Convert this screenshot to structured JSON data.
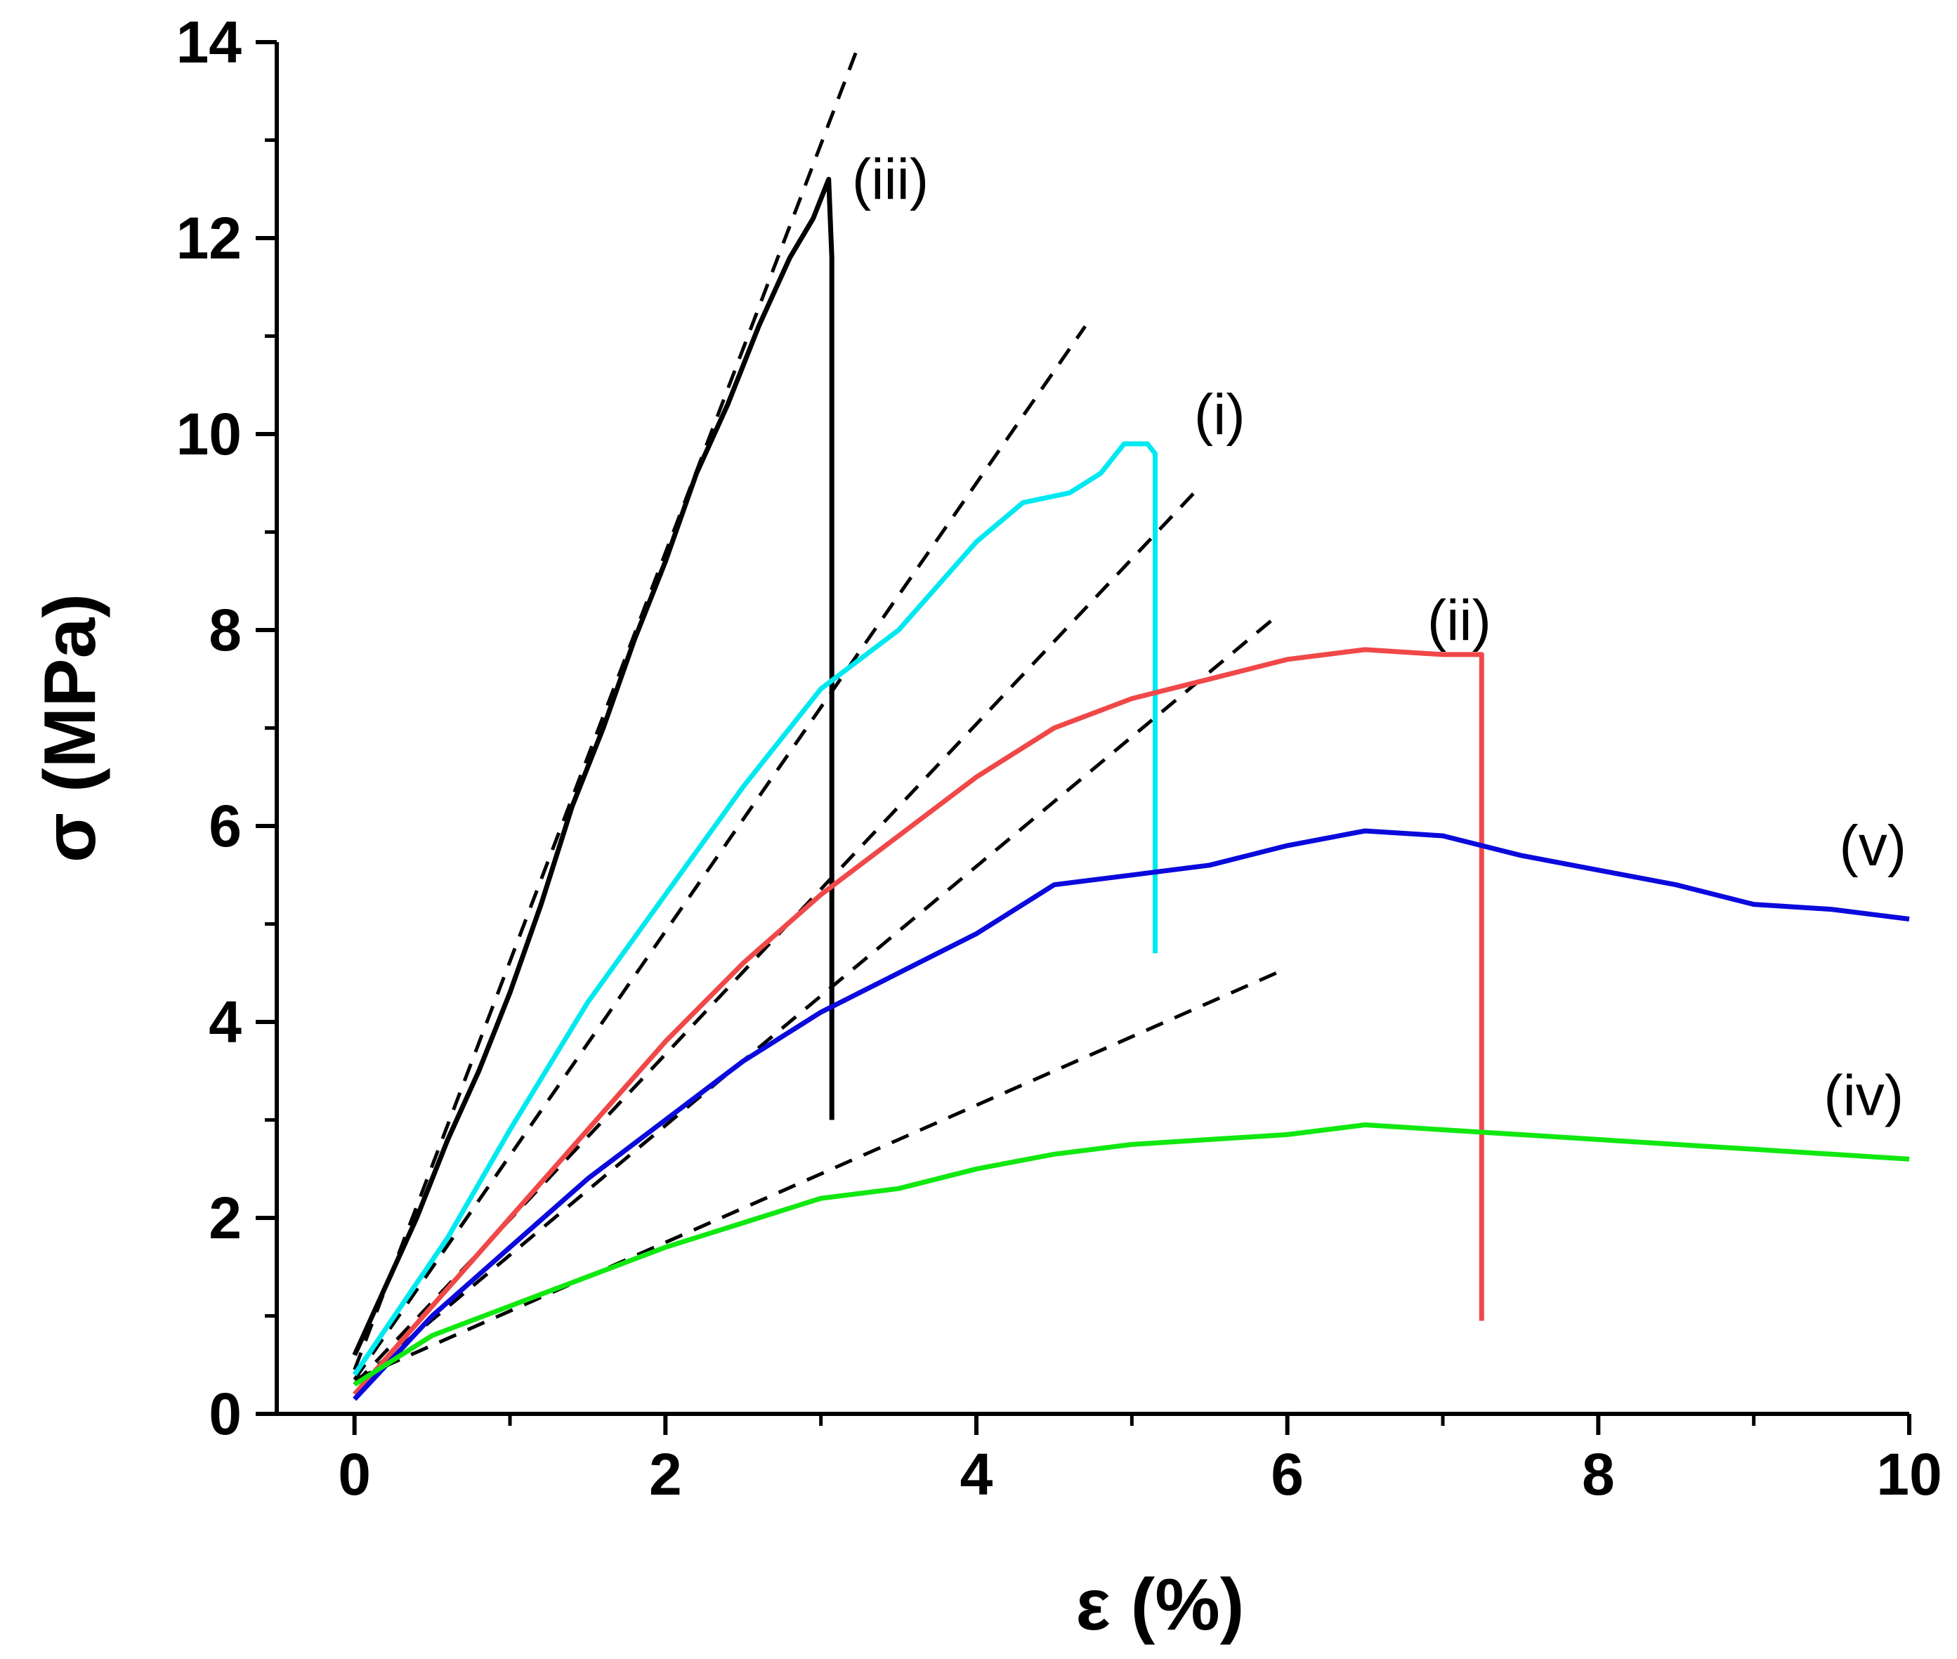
{
  "chart_data": {
    "type": "line",
    "title": "",
    "xlabel": "ε (%)",
    "ylabel": "σ (MPa)",
    "xlim": [
      -0.5,
      10
    ],
    "ylim": [
      0,
      14
    ],
    "xticks": [
      0,
      2,
      4,
      6,
      8,
      10
    ],
    "yticks": [
      0,
      2,
      4,
      6,
      8,
      10,
      12,
      14
    ],
    "xtick_labels": [
      "0",
      "2",
      "4",
      "6",
      "8",
      "10"
    ],
    "ytick_labels": [
      "0",
      "2",
      "4",
      "6",
      "8",
      "10",
      "12",
      "14"
    ],
    "grid": false,
    "series": [
      {
        "name": "(iii)",
        "color": "#000000",
        "label_at": [
          3.2,
          12.4
        ],
        "points": [
          [
            0,
            0.6
          ],
          [
            0.2,
            1.3
          ],
          [
            0.4,
            2.0
          ],
          [
            0.6,
            2.8
          ],
          [
            0.8,
            3.5
          ],
          [
            1.0,
            4.3
          ],
          [
            1.2,
            5.2
          ],
          [
            1.4,
            6.2
          ],
          [
            1.6,
            7.0
          ],
          [
            1.8,
            7.9
          ],
          [
            2.0,
            8.7
          ],
          [
            2.2,
            9.6
          ],
          [
            2.4,
            10.3
          ],
          [
            2.6,
            11.1
          ],
          [
            2.8,
            11.8
          ],
          [
            2.95,
            12.2
          ],
          [
            3.05,
            12.6
          ],
          [
            3.07,
            11.8
          ],
          [
            3.07,
            3.0
          ]
        ]
      },
      {
        "name": "(i)",
        "color": "#00E8F0",
        "label_at": [
          5.4,
          10.0
        ],
        "points": [
          [
            0,
            0.4
          ],
          [
            0.3,
            1.1
          ],
          [
            0.6,
            1.8
          ],
          [
            1.0,
            2.9
          ],
          [
            1.5,
            4.2
          ],
          [
            2.0,
            5.3
          ],
          [
            2.5,
            6.4
          ],
          [
            3.0,
            7.4
          ],
          [
            3.5,
            8.0
          ],
          [
            4.0,
            8.9
          ],
          [
            4.3,
            9.3
          ],
          [
            4.6,
            9.4
          ],
          [
            4.8,
            9.6
          ],
          [
            4.95,
            9.9
          ],
          [
            5.1,
            9.9
          ],
          [
            5.15,
            9.8
          ],
          [
            5.15,
            4.7
          ]
        ]
      },
      {
        "name": "(ii)",
        "color": "#F04848",
        "label_at": [
          6.9,
          7.9
        ],
        "points": [
          [
            0,
            0.2
          ],
          [
            0.5,
            1.1
          ],
          [
            1.0,
            2.0
          ],
          [
            1.5,
            2.9
          ],
          [
            2.0,
            3.8
          ],
          [
            2.5,
            4.6
          ],
          [
            3.0,
            5.3
          ],
          [
            3.5,
            5.9
          ],
          [
            4.0,
            6.5
          ],
          [
            4.5,
            7.0
          ],
          [
            5.0,
            7.3
          ],
          [
            5.5,
            7.5
          ],
          [
            6.0,
            7.7
          ],
          [
            6.5,
            7.8
          ],
          [
            7.0,
            7.75
          ],
          [
            7.25,
            7.75
          ],
          [
            7.25,
            0.95
          ]
        ]
      },
      {
        "name": "(v)",
        "color": "#0A0ADC",
        "label_at": [
          9.55,
          5.6
        ],
        "points": [
          [
            0,
            0.15
          ],
          [
            0.5,
            1.0
          ],
          [
            1.0,
            1.7
          ],
          [
            1.5,
            2.4
          ],
          [
            2.0,
            3.0
          ],
          [
            2.5,
            3.6
          ],
          [
            3.0,
            4.1
          ],
          [
            3.5,
            4.5
          ],
          [
            4.0,
            4.9
          ],
          [
            4.5,
            5.4
          ],
          [
            5.0,
            5.5
          ],
          [
            5.5,
            5.6
          ],
          [
            6.0,
            5.8
          ],
          [
            6.5,
            5.95
          ],
          [
            7.0,
            5.9
          ],
          [
            7.5,
            5.7
          ],
          [
            8.0,
            5.55
          ],
          [
            8.5,
            5.4
          ],
          [
            9.0,
            5.2
          ],
          [
            9.5,
            5.15
          ],
          [
            10.0,
            5.05
          ]
        ]
      },
      {
        "name": "(iv)",
        "color": "#10E810",
        "label_at": [
          9.45,
          3.05
        ],
        "points": [
          [
            0,
            0.3
          ],
          [
            0.5,
            0.8
          ],
          [
            1.0,
            1.1
          ],
          [
            1.5,
            1.4
          ],
          [
            2.0,
            1.7
          ],
          [
            2.5,
            1.95
          ],
          [
            3.0,
            2.2
          ],
          [
            3.5,
            2.3
          ],
          [
            4.0,
            2.5
          ],
          [
            4.5,
            2.65
          ],
          [
            5.0,
            2.75
          ],
          [
            5.5,
            2.8
          ],
          [
            6.0,
            2.85
          ],
          [
            6.5,
            2.95
          ],
          [
            7.0,
            2.9
          ],
          [
            7.5,
            2.85
          ],
          [
            8.0,
            2.8
          ],
          [
            8.5,
            2.75
          ],
          [
            9.0,
            2.7
          ],
          [
            9.5,
            2.65
          ],
          [
            10.0,
            2.6
          ]
        ]
      }
    ],
    "fit_lines": [
      {
        "name": "fit-iii",
        "points": [
          [
            0,
            0.45
          ],
          [
            3.25,
            14.0
          ]
        ]
      },
      {
        "name": "fit-i",
        "points": [
          [
            0,
            0.35
          ],
          [
            4.7,
            11.1
          ]
        ]
      },
      {
        "name": "fit-ii",
        "points": [
          [
            0,
            0.3
          ],
          [
            5.4,
            9.4
          ]
        ]
      },
      {
        "name": "fit-v",
        "points": [
          [
            0,
            0.3
          ],
          [
            5.9,
            8.1
          ]
        ]
      },
      {
        "name": "fit-iv",
        "points": [
          [
            0,
            0.35
          ],
          [
            6.0,
            4.55
          ]
        ]
      }
    ]
  }
}
